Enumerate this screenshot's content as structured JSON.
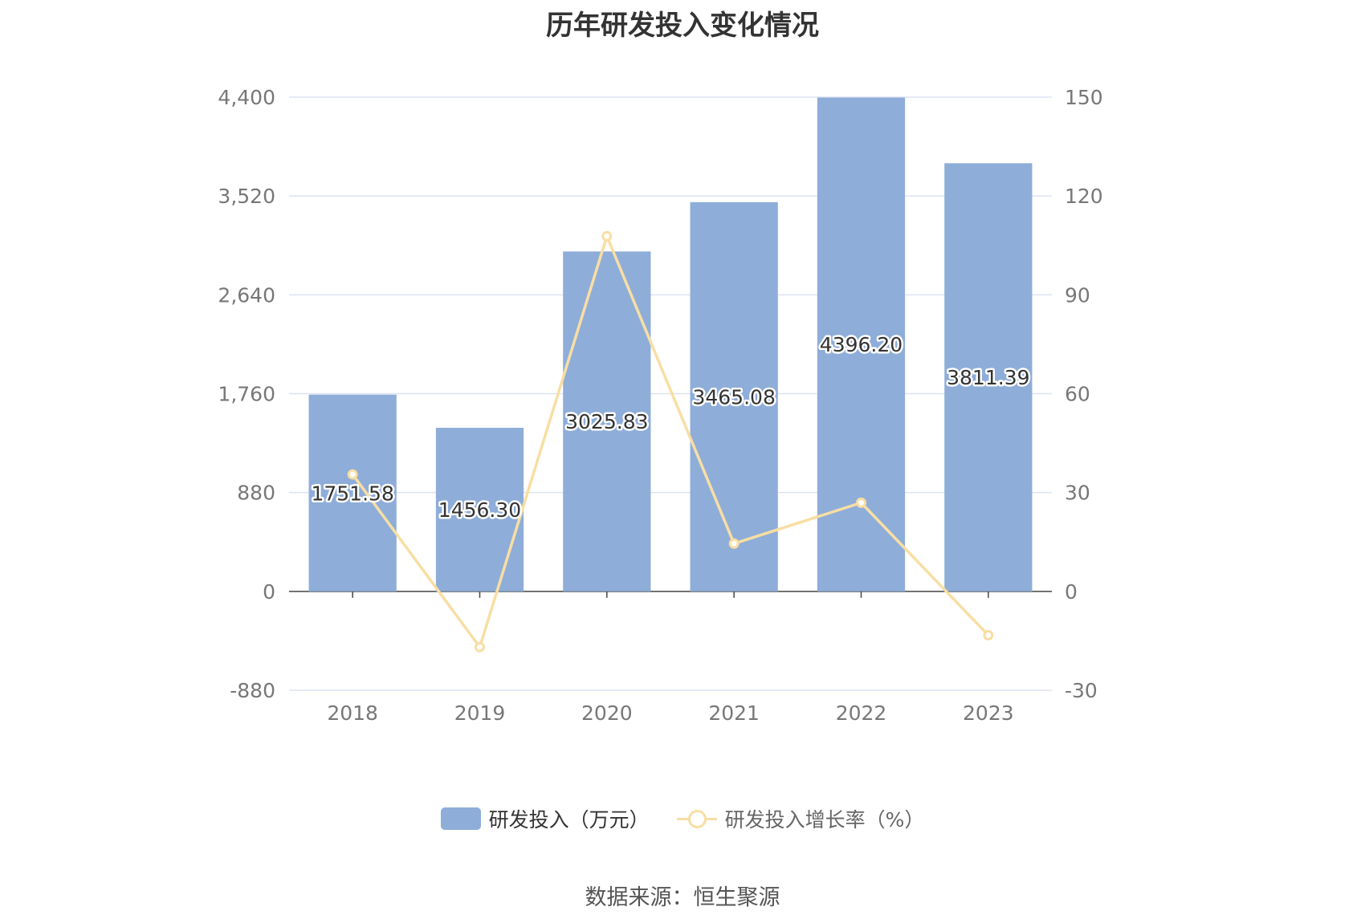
{
  "title": "历年研发投入变化情况",
  "source_note": "数据来源：恒生聚源",
  "legend": {
    "bar_label": "研发投入（万元）",
    "line_label": "研发投入增长率（%）"
  },
  "colors": {
    "bar": "#8eadd9",
    "line": "#f8dea4",
    "grid": "#dde3f2",
    "axis_text": "#777777",
    "axis_line": "#444444"
  },
  "chart_data": {
    "type": "bar",
    "categories": [
      "2018",
      "2019",
      "2020",
      "2021",
      "2022",
      "2023"
    ],
    "series": [
      {
        "name": "研发投入（万元）",
        "type": "bar",
        "axis": "left",
        "values": [
          1751.58,
          1456.3,
          3025.83,
          3465.08,
          4396.2,
          3811.39
        ],
        "labels": [
          "1751.58",
          "1456.30",
          "3025.83",
          "3465.08",
          "4396.20",
          "3811.39"
        ]
      },
      {
        "name": "研发投入增长率（%）",
        "type": "line",
        "axis": "right",
        "values": [
          35.5,
          -16.9,
          107.8,
          14.5,
          26.9,
          -13.3
        ]
      }
    ],
    "y_left": {
      "ticks": [
        -880,
        0,
        880,
        1760,
        2640,
        3520,
        4400
      ],
      "tick_labels": [
        "-880",
        "0",
        "880",
        "1,760",
        "2,640",
        "3,520",
        "4,400"
      ],
      "range": [
        -880,
        4400
      ]
    },
    "y_right": {
      "ticks": [
        -30,
        0,
        30,
        60,
        90,
        120,
        150
      ],
      "tick_labels": [
        "-30",
        "0",
        "30",
        "60",
        "90",
        "120",
        "150"
      ],
      "range": [
        -30,
        150
      ]
    },
    "grid": true,
    "legend_position": "bottom"
  }
}
